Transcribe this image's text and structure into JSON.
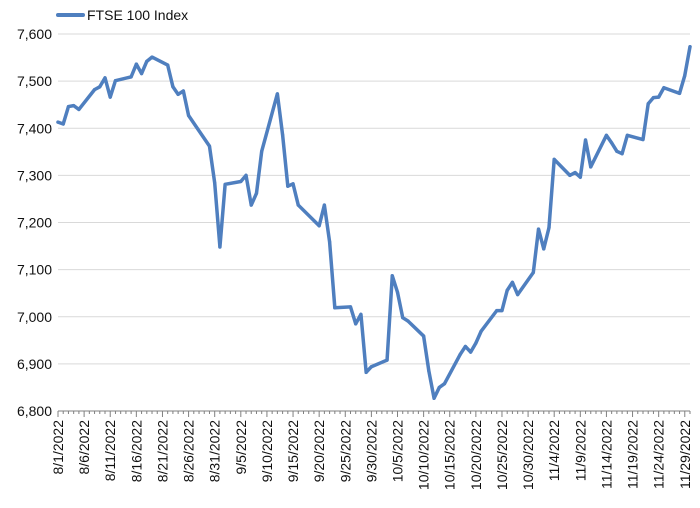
{
  "chart_data": {
    "type": "line",
    "title": "",
    "xlabel": "",
    "ylabel": "",
    "legend_position": "top-left",
    "grid": "horizontal",
    "line_color": "#4f7fbf",
    "ylim": [
      6800,
      7600
    ],
    "yticks": [
      6800,
      6900,
      7000,
      7100,
      7200,
      7300,
      7400,
      7500,
      7600
    ],
    "ytick_labels": [
      "6,800",
      "6,900",
      "7,000",
      "7,100",
      "7,200",
      "7,300",
      "7,400",
      "7,500",
      "7,600"
    ],
    "xlim": [
      "2022-08-01",
      "2022-11-30"
    ],
    "xtick_labels": [
      "8/1/2022",
      "8/6/2022",
      "8/11/2022",
      "8/16/2022",
      "8/21/2022",
      "8/26/2022",
      "8/31/2022",
      "9/5/2022",
      "9/10/2022",
      "9/15/2022",
      "9/20/2022",
      "9/25/2022",
      "9/30/2022",
      "10/5/2022",
      "10/10/2022",
      "10/15/2022",
      "10/20/2022",
      "10/25/2022",
      "10/30/2022",
      "11/4/2022",
      "11/9/2022",
      "11/14/2022",
      "11/19/2022",
      "11/24/2022",
      "11/29/2022"
    ],
    "series": [
      {
        "name": "FTSE 100 Index",
        "points": [
          [
            "2022-08-01",
            7413
          ],
          [
            "2022-08-02",
            7409
          ],
          [
            "2022-08-03",
            7446
          ],
          [
            "2022-08-04",
            7448
          ],
          [
            "2022-08-05",
            7440
          ],
          [
            "2022-08-08",
            7482
          ],
          [
            "2022-08-09",
            7488
          ],
          [
            "2022-08-10",
            7507
          ],
          [
            "2022-08-11",
            7466
          ],
          [
            "2022-08-12",
            7501
          ],
          [
            "2022-08-15",
            7509
          ],
          [
            "2022-08-16",
            7536
          ],
          [
            "2022-08-17",
            7516
          ],
          [
            "2022-08-18",
            7542
          ],
          [
            "2022-08-19",
            7551
          ],
          [
            "2022-08-22",
            7534
          ],
          [
            "2022-08-23",
            7488
          ],
          [
            "2022-08-24",
            7472
          ],
          [
            "2022-08-25",
            7479
          ],
          [
            "2022-08-26",
            7427
          ],
          [
            "2022-08-30",
            7362
          ],
          [
            "2022-08-31",
            7284
          ],
          [
            "2022-09-01",
            7148
          ],
          [
            "2022-09-02",
            7281
          ],
          [
            "2022-09-05",
            7287
          ],
          [
            "2022-09-06",
            7300
          ],
          [
            "2022-09-07",
            7237
          ],
          [
            "2022-09-08",
            7262
          ],
          [
            "2022-09-09",
            7351
          ],
          [
            "2022-09-12",
            7473
          ],
          [
            "2022-09-13",
            7386
          ],
          [
            "2022-09-14",
            7277
          ],
          [
            "2022-09-15",
            7282
          ],
          [
            "2022-09-16",
            7237
          ],
          [
            "2022-09-20",
            7193
          ],
          [
            "2022-09-21",
            7237
          ],
          [
            "2022-09-22",
            7159
          ],
          [
            "2022-09-23",
            7019
          ],
          [
            "2022-09-26",
            7021
          ],
          [
            "2022-09-27",
            6985
          ],
          [
            "2022-09-28",
            7005
          ],
          [
            "2022-09-29",
            6882
          ],
          [
            "2022-09-30",
            6894
          ],
          [
            "2022-10-03",
            6908
          ],
          [
            "2022-10-04",
            7087
          ],
          [
            "2022-10-05",
            7052
          ],
          [
            "2022-10-06",
            6998
          ],
          [
            "2022-10-07",
            6991
          ],
          [
            "2022-10-10",
            6959
          ],
          [
            "2022-10-11",
            6885
          ],
          [
            "2022-10-12",
            6827
          ],
          [
            "2022-10-13",
            6850
          ],
          [
            "2022-10-14",
            6858
          ],
          [
            "2022-10-17",
            6920
          ],
          [
            "2022-10-18",
            6937
          ],
          [
            "2022-10-19",
            6925
          ],
          [
            "2022-10-20",
            6944
          ],
          [
            "2022-10-21",
            6969
          ],
          [
            "2022-10-24",
            7013
          ],
          [
            "2022-10-25",
            7013
          ],
          [
            "2022-10-26",
            7056
          ],
          [
            "2022-10-27",
            7073
          ],
          [
            "2022-10-28",
            7047
          ],
          [
            "2022-10-31",
            7094
          ],
          [
            "2022-11-01",
            7186
          ],
          [
            "2022-11-02",
            7144
          ],
          [
            "2022-11-03",
            7189
          ],
          [
            "2022-11-04",
            7334
          ],
          [
            "2022-11-07",
            7300
          ],
          [
            "2022-11-08",
            7306
          ],
          [
            "2022-11-09",
            7296
          ],
          [
            "2022-11-10",
            7375
          ],
          [
            "2022-11-11",
            7318
          ],
          [
            "2022-11-14",
            7385
          ],
          [
            "2022-11-15",
            7369
          ],
          [
            "2022-11-16",
            7351
          ],
          [
            "2022-11-17",
            7346
          ],
          [
            "2022-11-18",
            7385
          ],
          [
            "2022-11-21",
            7376
          ],
          [
            "2022-11-22",
            7452
          ],
          [
            "2022-11-23",
            7465
          ],
          [
            "2022-11-24",
            7466
          ],
          [
            "2022-11-25",
            7486
          ],
          [
            "2022-11-28",
            7474
          ],
          [
            "2022-11-29",
            7512
          ],
          [
            "2022-11-30",
            7573
          ]
        ]
      }
    ]
  }
}
